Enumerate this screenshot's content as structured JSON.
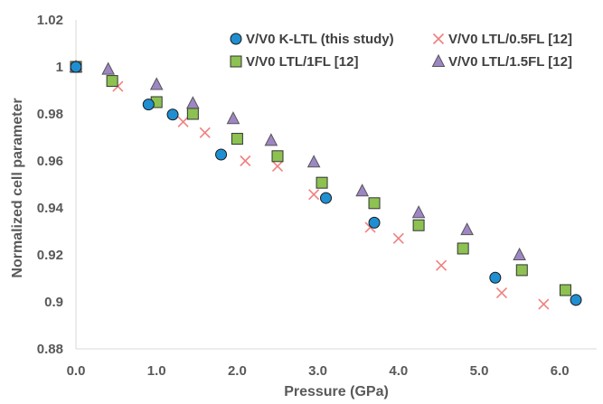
{
  "chart_data": {
    "type": "scatter",
    "title": "",
    "xlabel": "Pressure (GPa)",
    "ylabel": "Normalized cell parameter",
    "xlim": [
      0,
      6.5
    ],
    "ylim": [
      0.88,
      1.02
    ],
    "x_ticks": [
      "0.0",
      "1.0",
      "2.0",
      "3.0",
      "4.0",
      "5.0",
      "6.0"
    ],
    "y_ticks": [
      "0.88",
      "0.9",
      "0.92",
      "0.94",
      "0.96",
      "0.98",
      "1",
      "1.02"
    ],
    "grid": false,
    "legend_position": "top-right",
    "series": [
      {
        "name": "V/V0 K-LTL (this study)",
        "marker": "circle",
        "color": "#1f8fd1",
        "points": [
          [
            0,
            1.0
          ],
          [
            0.9,
            0.984
          ],
          [
            1.2,
            0.9797
          ],
          [
            1.8,
            0.9627
          ],
          [
            3.1,
            0.9442
          ],
          [
            3.7,
            0.9337
          ],
          [
            5.2,
            0.9103
          ],
          [
            6.2,
            0.9008
          ]
        ]
      },
      {
        "name": "V/V0 LTL/0.5FL [12]",
        "marker": "cross",
        "color": "#f08080",
        "points": [
          [
            0,
            1.0
          ],
          [
            0.52,
            0.9917
          ],
          [
            1.33,
            0.9766
          ],
          [
            1.6,
            0.972
          ],
          [
            2.1,
            0.96
          ],
          [
            2.5,
            0.9577
          ],
          [
            2.95,
            0.9457
          ],
          [
            3.65,
            0.9317
          ],
          [
            4.0,
            0.927
          ],
          [
            4.53,
            0.9155
          ],
          [
            5.28,
            0.9038
          ],
          [
            5.8,
            0.899
          ]
        ]
      },
      {
        "name": "V/V0 LTL/1FL [12]",
        "marker": "square",
        "color": "#8dc152",
        "points": [
          [
            0,
            1.0
          ],
          [
            0.45,
            0.994
          ],
          [
            1.0,
            0.985
          ],
          [
            1.45,
            0.98
          ],
          [
            2.0,
            0.9694
          ],
          [
            2.5,
            0.962
          ],
          [
            3.05,
            0.9507
          ],
          [
            3.7,
            0.942
          ],
          [
            4.25,
            0.9326
          ],
          [
            4.8,
            0.9227
          ],
          [
            5.53,
            0.9135
          ],
          [
            6.07,
            0.905
          ]
        ]
      },
      {
        "name": "V/V0 LTL/1.5FL [12]",
        "marker": "triangle",
        "color": "#9e86c4",
        "points": [
          [
            0,
            1.0
          ],
          [
            0.4,
            0.999
          ],
          [
            1.0,
            0.9925
          ],
          [
            1.45,
            0.9845
          ],
          [
            1.95,
            0.978
          ],
          [
            2.42,
            0.9687
          ],
          [
            2.95,
            0.9595
          ],
          [
            3.55,
            0.9472
          ],
          [
            4.25,
            0.938
          ],
          [
            4.85,
            0.9307
          ],
          [
            5.5,
            0.92
          ]
        ]
      }
    ]
  }
}
